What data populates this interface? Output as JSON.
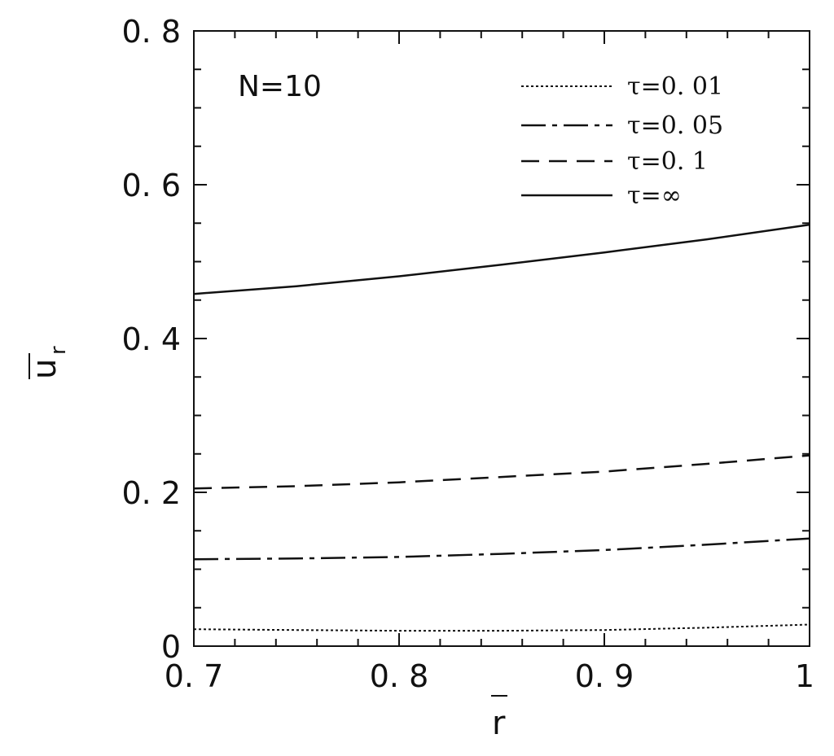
{
  "chart_data": {
    "type": "line",
    "annotation": "N=10",
    "xlabel": "r",
    "ylabel": "u",
    "ylabel_subscript": "r",
    "xlim": [
      0.7,
      1.0
    ],
    "ylim": [
      0,
      0.8
    ],
    "xticks": [
      0.7,
      0.8,
      0.9,
      1.0
    ],
    "xtick_labels": [
      "0. 7",
      "0. 8",
      "0. 9",
      "1"
    ],
    "yticks": [
      0,
      0.2,
      0.4,
      0.6,
      0.8
    ],
    "ytick_labels": [
      "0",
      "0. 2",
      "0. 4",
      "0. 6",
      "0. 8"
    ],
    "grid": false,
    "legend_position": "top-right",
    "series": [
      {
        "name": "τ=0. 01",
        "style": "dotted",
        "x": [
          0.7,
          0.75,
          0.8,
          0.85,
          0.9,
          0.95,
          1.0
        ],
        "y": [
          0.022,
          0.021,
          0.02,
          0.02,
          0.021,
          0.024,
          0.028
        ]
      },
      {
        "name": "τ=0. 05",
        "style": "dash-dot",
        "x": [
          0.7,
          0.75,
          0.8,
          0.85,
          0.9,
          0.95,
          1.0
        ],
        "y": [
          0.113,
          0.114,
          0.116,
          0.12,
          0.125,
          0.132,
          0.14
        ]
      },
      {
        "name": "τ=0. 1",
        "style": "dashed",
        "x": [
          0.7,
          0.75,
          0.8,
          0.85,
          0.9,
          0.95,
          1.0
        ],
        "y": [
          0.205,
          0.208,
          0.213,
          0.22,
          0.227,
          0.237,
          0.248
        ]
      },
      {
        "name": "τ=∞",
        "style": "solid",
        "x": [
          0.7,
          0.75,
          0.8,
          0.85,
          0.9,
          0.95,
          1.0
        ],
        "y": [
          0.458,
          0.468,
          0.481,
          0.496,
          0.512,
          0.529,
          0.548
        ]
      }
    ]
  }
}
